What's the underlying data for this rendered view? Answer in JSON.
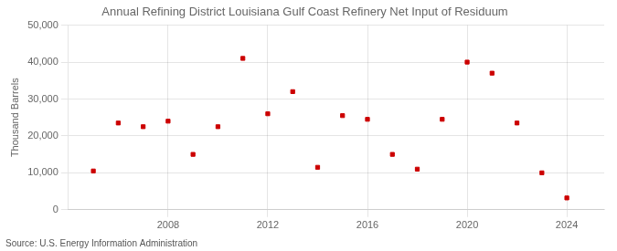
{
  "chart_data": {
    "type": "scatter",
    "title": "Annual Refining District Louisiana Gulf Coast Refinery Net Input of Residuum",
    "ylabel": "Thousand Barrels",
    "annotations": [
      "Source: U.S. Energy Information Administration"
    ],
    "x": [
      2005,
      2006,
      2007,
      2008,
      2009,
      2010,
      2011,
      2012,
      2013,
      2014,
      2015,
      2016,
      2017,
      2018,
      2019,
      2020,
      2021,
      2022,
      2023,
      2024
    ],
    "values": [
      10500,
      23500,
      22500,
      24000,
      15000,
      22500,
      41000,
      26000,
      32000,
      11500,
      25500,
      24500,
      15000,
      11000,
      24500,
      40000,
      37000,
      23500,
      10000,
      3200
    ],
    "color": "#cc0000",
    "marker": "square",
    "xlim": [
      2004.0,
      2025.5
    ],
    "xticks": [
      2008,
      2012,
      2016,
      2020,
      2024
    ],
    "ylim": [
      0,
      50000
    ],
    "yticks": [
      0,
      {
        "value": 10000,
        "label": "10,000"
      },
      {
        "value": 20000,
        "label": "20,000"
      },
      {
        "value": 30000,
        "label": "30,000"
      },
      {
        "value": 40000,
        "label": "40,000"
      },
      {
        "value": 50000,
        "label": "50,000"
      }
    ],
    "grid": true
  }
}
